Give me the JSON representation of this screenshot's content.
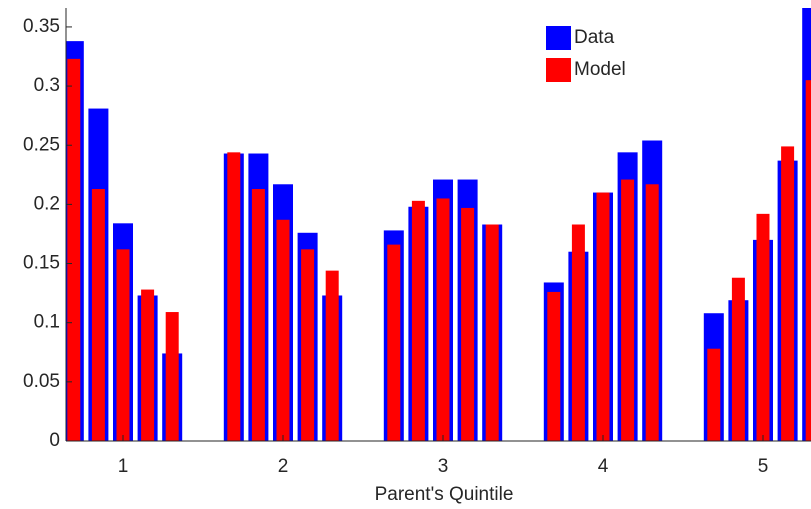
{
  "chart_data": {
    "type": "bar",
    "x_label": "Parent's Quintile",
    "categories": [
      "1",
      "2",
      "3",
      "4",
      "5"
    ],
    "series": [
      {
        "name": "Data",
        "color": "#0000ff",
        "values": [
          [
            0.338,
            0.281,
            0.184,
            0.123,
            0.074
          ],
          [
            0.243,
            0.243,
            0.217,
            0.176,
            0.123
          ],
          [
            0.178,
            0.198,
            0.221,
            0.221,
            0.183
          ],
          [
            0.134,
            0.16,
            0.21,
            0.244,
            0.254
          ],
          [
            0.108,
            0.119,
            0.17,
            0.237,
            0.37
          ]
        ]
      },
      {
        "name": "Model",
        "color": "#ff0000",
        "values": [
          [
            0.323,
            0.213,
            0.162,
            0.128,
            0.109
          ],
          [
            0.244,
            0.213,
            0.187,
            0.162,
            0.144
          ],
          [
            0.166,
            0.203,
            0.205,
            0.197,
            0.183
          ],
          [
            0.126,
            0.183,
            0.21,
            0.221,
            0.217
          ],
          [
            0.078,
            0.138,
            0.192,
            0.249,
            0.305
          ]
        ]
      }
    ],
    "ylim": [
      0,
      0.366
    ],
    "yticks": [
      0,
      0.05,
      0.1,
      0.15,
      0.2,
      0.25,
      0.3,
      0.35
    ],
    "legend": "northeast"
  }
}
